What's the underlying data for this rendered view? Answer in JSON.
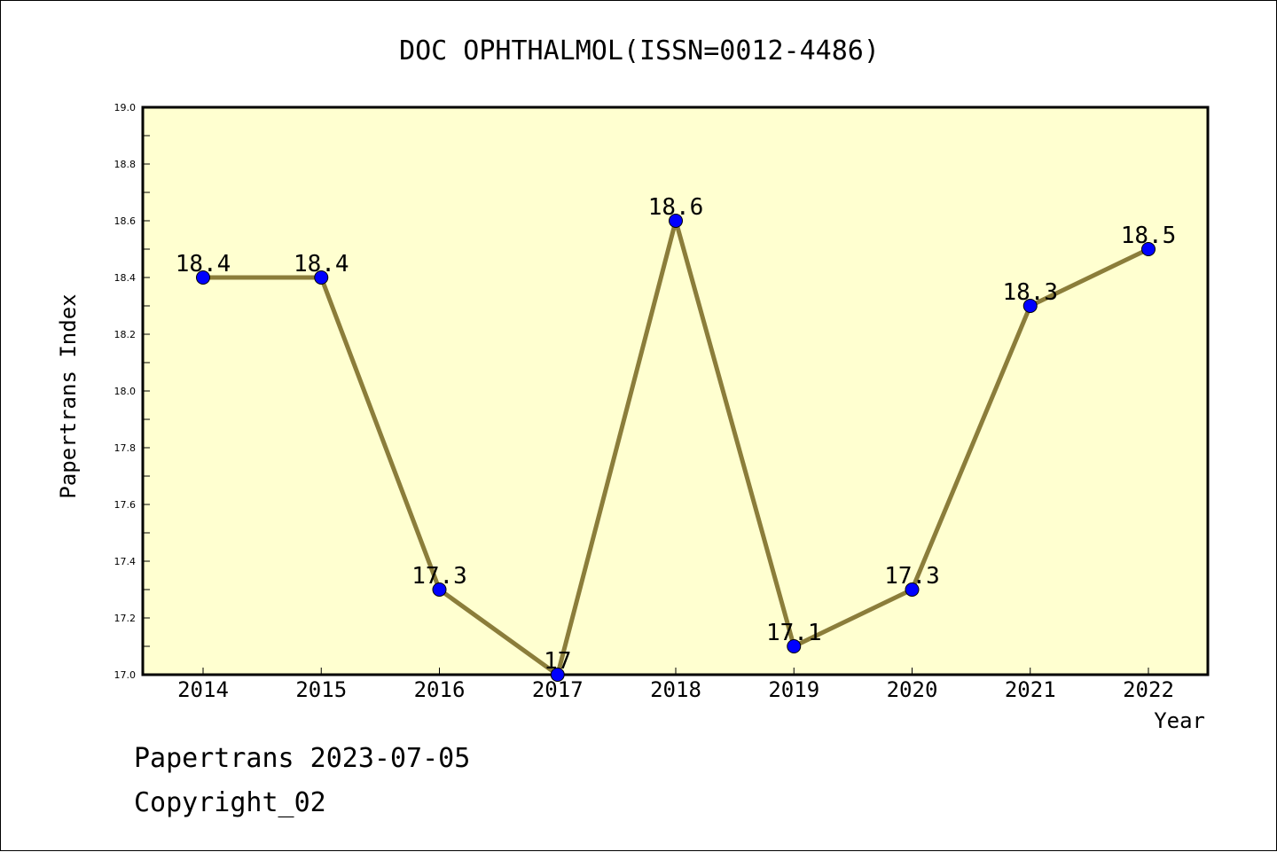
{
  "colors": {
    "plot_background": "#ffffd0",
    "line": "#8b7d3a",
    "marker": "#0000ff",
    "frame": "#000000"
  },
  "footer": {
    "line1": "Papertrans 2023-07-05",
    "line2": "Copyright_02"
  },
  "chart_data": {
    "type": "line",
    "title": "DOC OPHTHALMOL(ISSN=0012-4486)",
    "xlabel": "Year",
    "ylabel": "Papertrans Index",
    "categories": [
      "2014",
      "2015",
      "2016",
      "2017",
      "2018",
      "2019",
      "2020",
      "2021",
      "2022"
    ],
    "series": [
      {
        "values": [
          18.4,
          18.4,
          17.3,
          17.0,
          18.6,
          17.1,
          17.3,
          18.3,
          18.5
        ],
        "data_labels": [
          "18.4",
          "18.4",
          "17.3",
          "17",
          "18.6",
          "17.1",
          "17.3",
          "18.3",
          "18.5"
        ]
      }
    ],
    "ylim": [
      17.0,
      19.0
    ],
    "yticks": [
      "17.0",
      "17.2",
      "17.4",
      "17.6",
      "17.8",
      "18.0",
      "18.2",
      "18.4",
      "18.6",
      "18.8",
      "19.0"
    ],
    "grid": false,
    "legend": "none"
  }
}
